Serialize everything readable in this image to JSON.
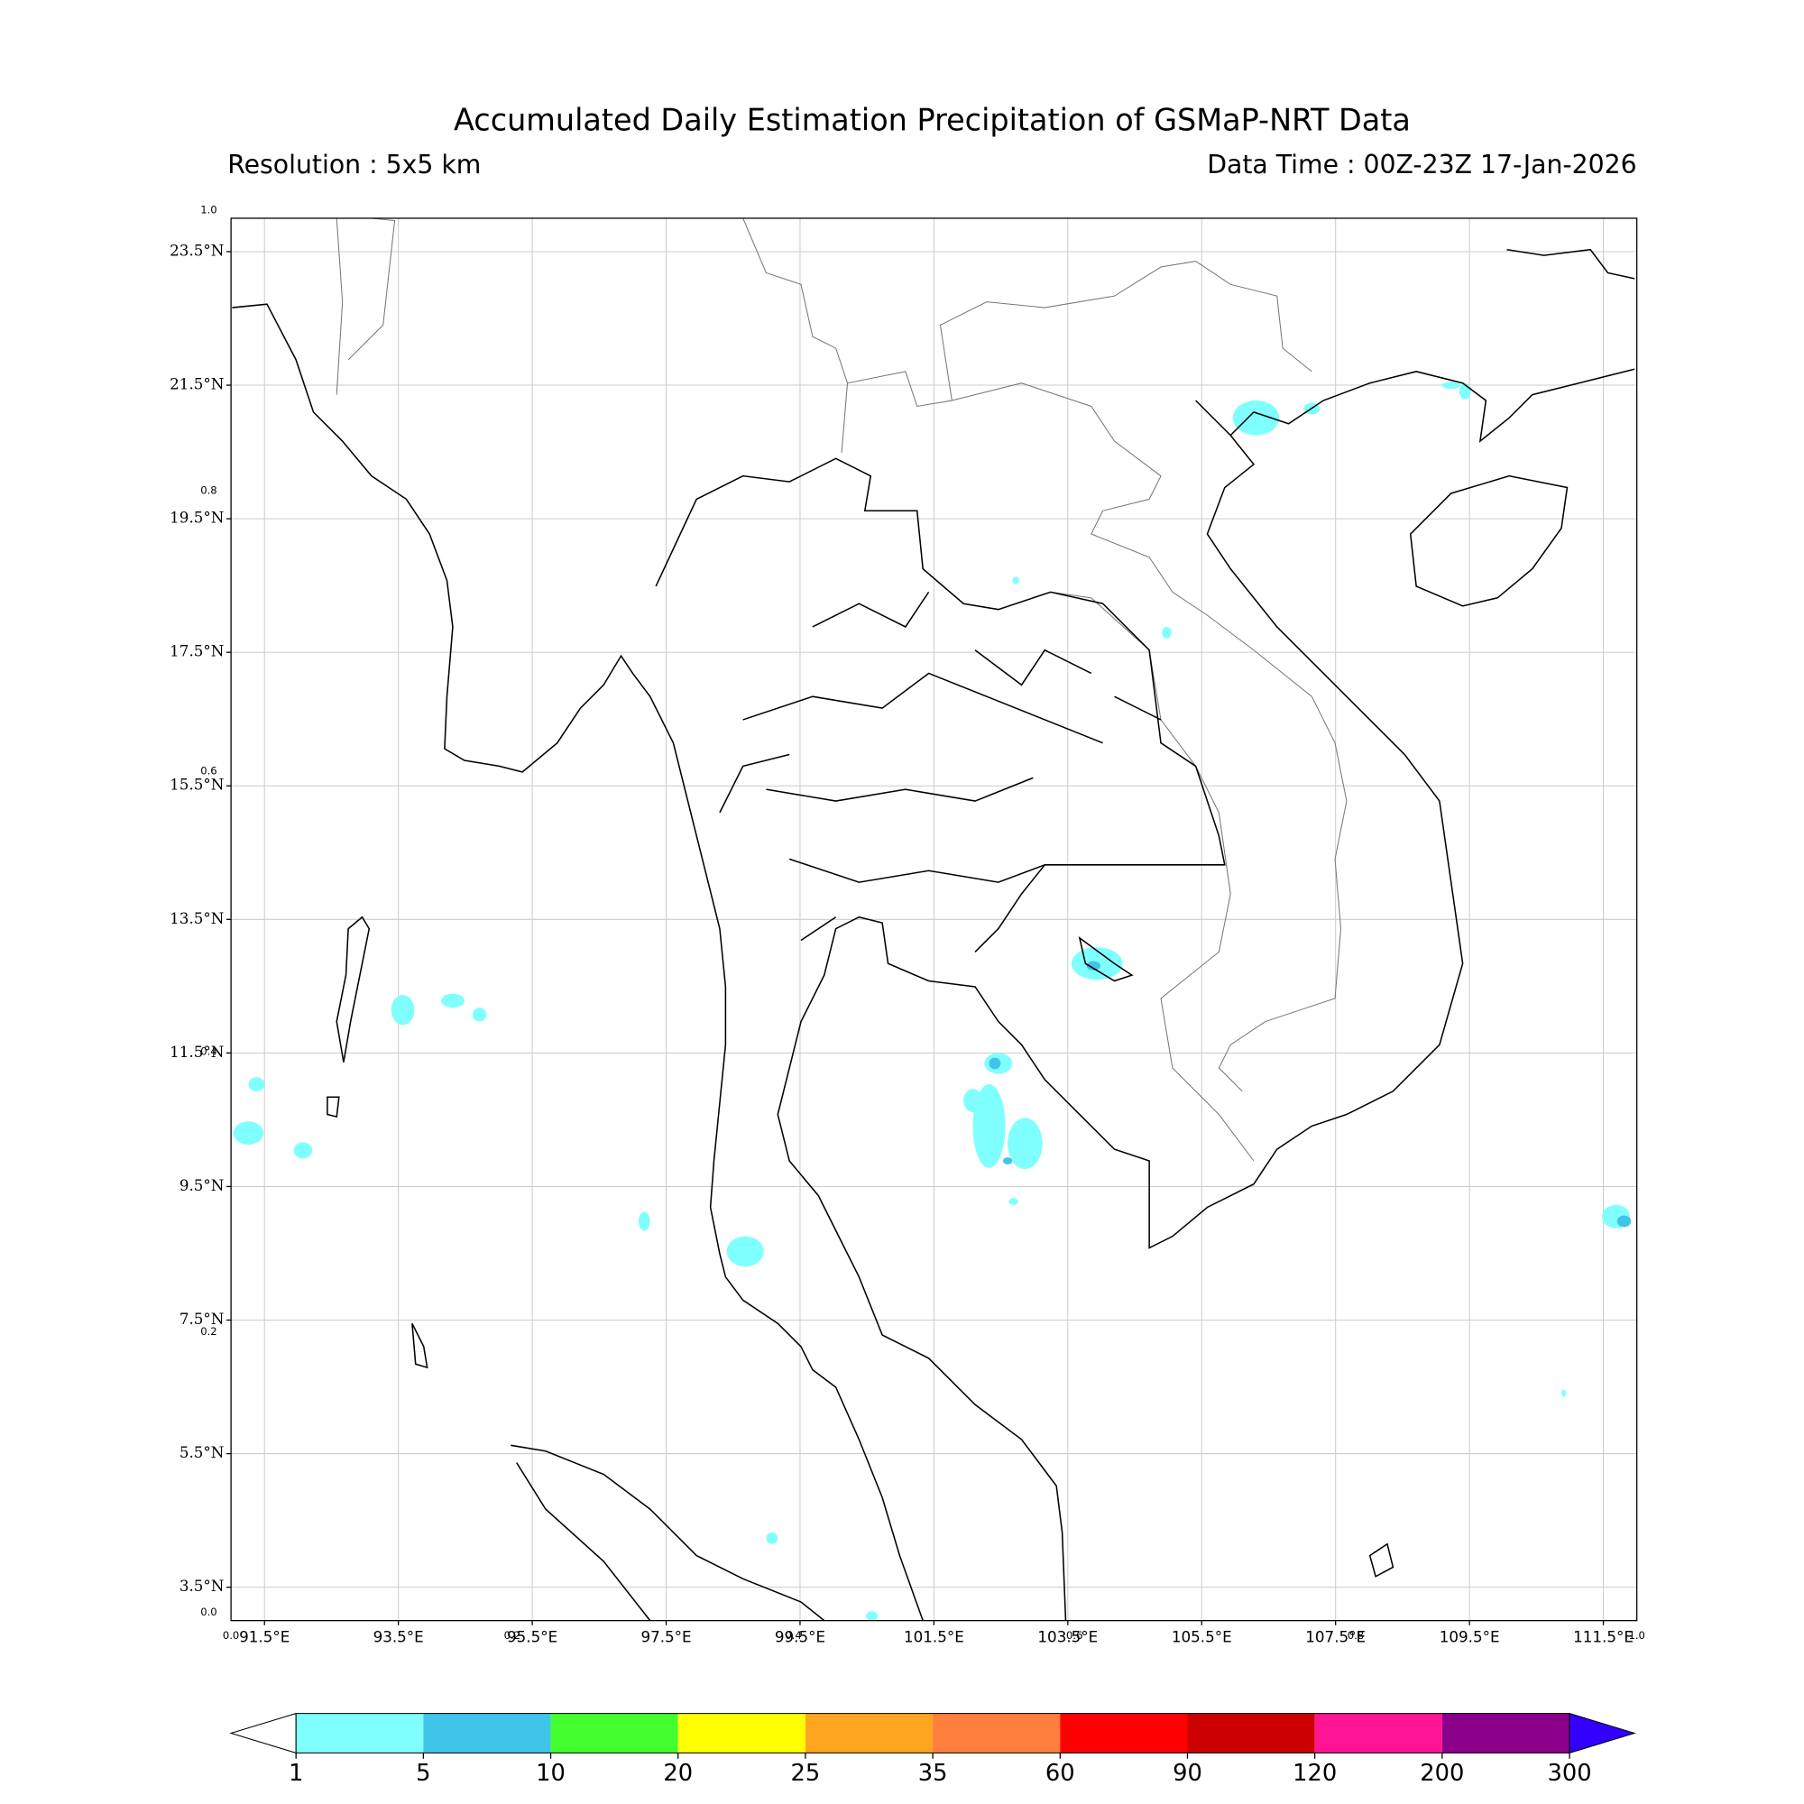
{
  "chart_data": {
    "type": "map",
    "title": "Accumulated Daily Estimation Precipitation of GSMaP-NRT Data",
    "subtitle_left": "Resolution : 5x5 km",
    "subtitle_right": "Data Time : 00Z-23Z 17-Jan-2026",
    "xlim": [
      91,
      112
    ],
    "ylim": [
      3,
      24
    ],
    "xticks": [
      {
        "value": 91.5,
        "label": "91.5°E"
      },
      {
        "value": 93.5,
        "label": "93.5°E"
      },
      {
        "value": 95.5,
        "label": "95.5°E"
      },
      {
        "value": 97.5,
        "label": "97.5°E"
      },
      {
        "value": 99.5,
        "label": "99.5°E"
      },
      {
        "value": 101.5,
        "label": "101.5°E"
      },
      {
        "value": 103.5,
        "label": "103.5°E"
      },
      {
        "value": 105.5,
        "label": "105.5°E"
      },
      {
        "value": 107.5,
        "label": "107.5°E"
      },
      {
        "value": 109.5,
        "label": "109.5°E"
      },
      {
        "value": 111.5,
        "label": "111.5°E"
      }
    ],
    "yticks": [
      {
        "value": 3.5,
        "label": "3.5°N"
      },
      {
        "value": 5.5,
        "label": "5.5°N"
      },
      {
        "value": 7.5,
        "label": "7.5°N"
      },
      {
        "value": 9.5,
        "label": "9.5°N"
      },
      {
        "value": 11.5,
        "label": "11.5°N"
      },
      {
        "value": 13.5,
        "label": "13.5°N"
      },
      {
        "value": 15.5,
        "label": "15.5°N"
      },
      {
        "value": 17.5,
        "label": "17.5°N"
      },
      {
        "value": 19.5,
        "label": "19.5°N"
      },
      {
        "value": 21.5,
        "label": "21.5°N"
      },
      {
        "value": 23.5,
        "label": "23.5°N"
      }
    ],
    "frame_ticks": [
      {
        "value": 0,
        "label": "0.0"
      },
      {
        "value": 0.2,
        "label": "0.2"
      },
      {
        "value": 0.4,
        "label": "0.4"
      },
      {
        "value": 0.6,
        "label": "0.6"
      },
      {
        "value": 0.8,
        "label": "0.8"
      },
      {
        "value": 1,
        "label": "1.0"
      }
    ],
    "grid": true,
    "colorbar": {
      "levels": [
        1,
        5,
        10,
        20,
        25,
        35,
        60,
        90,
        120,
        200,
        300
      ],
      "colors": [
        "#7ffffe",
        "#40c5e8",
        "#44ff2e",
        "#ffff00",
        "#ffa51e",
        "#ff7f3f",
        "#ff0000",
        "#cc0000",
        "#ff1493",
        "#8b008b"
      ],
      "under_color": "#ffffff",
      "over_color": "#3300ff"
    }
  }
}
